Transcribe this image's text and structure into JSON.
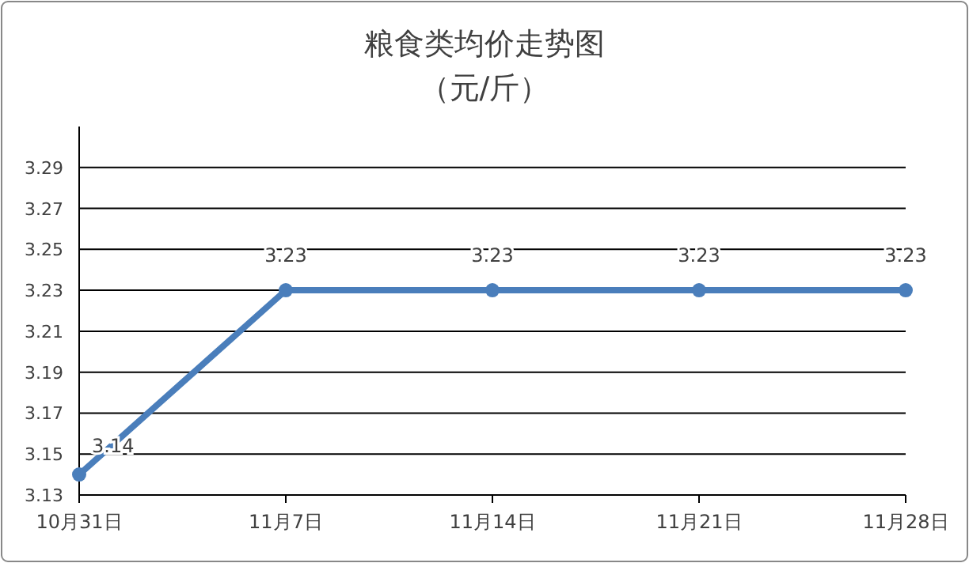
{
  "chart_data": {
    "type": "line",
    "title": "粮食类均价走势图",
    "subtitle": "（元/斤）",
    "categories": [
      "10月31日",
      "11月7日",
      "11月14日",
      "11月21日",
      "11月28日"
    ],
    "series": [
      {
        "color": "#4a7ebb",
        "values": [
          3.14,
          3.23,
          3.23,
          3.23,
          3.23
        ]
      }
    ],
    "ylim": [
      3.13,
      3.31
    ],
    "yticks": [
      3.13,
      3.15,
      3.17,
      3.19,
      3.21,
      3.23,
      3.25,
      3.27,
      3.29
    ],
    "grid": "y",
    "marker": "circle",
    "line_style": "solid",
    "data_labels": true
  }
}
